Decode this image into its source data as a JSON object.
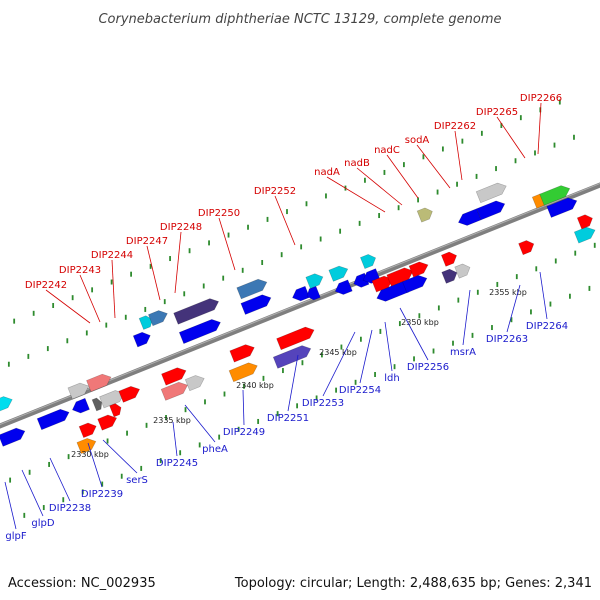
{
  "title": "Corynebacterium diphtheriae NCTC 13129, complete genome",
  "accession": "Accession: NC_002935",
  "topology": "Topology: circular; Length: 2,488,635 bp; Genes: 2,341",
  "colors": {
    "background": "#ffffff",
    "backbone": "#7f7f7f",
    "top_label": "#d40000",
    "bottom_label": "#1a1acc",
    "dotted": "#2e8b2e"
  },
  "ticks": [
    "2330 kbp",
    "2335 kbp",
    "2340 kbp",
    "2345 kbp",
    "2350 kbp",
    "2355 kbp"
  ],
  "top_labels": [
    "DIP2242",
    "DIP2243",
    "DIP2244",
    "DIP2247",
    "DIP2248",
    "DIP2250",
    "DIP2252",
    "nadA",
    "nadB",
    "nadC",
    "sodA",
    "DIP2262",
    "DIP2265",
    "DIP2266"
  ],
  "bottom_labels": [
    "glpF",
    "glpD",
    "DIP2238",
    "DIP2239",
    "serS",
    "DIP2245",
    "pheA",
    "DIP2249",
    "DIP2251",
    "DIP2253",
    "DIP2254",
    "ldh",
    "DIP2256",
    "msrA",
    "DIP2263",
    "DIP2264"
  ]
}
